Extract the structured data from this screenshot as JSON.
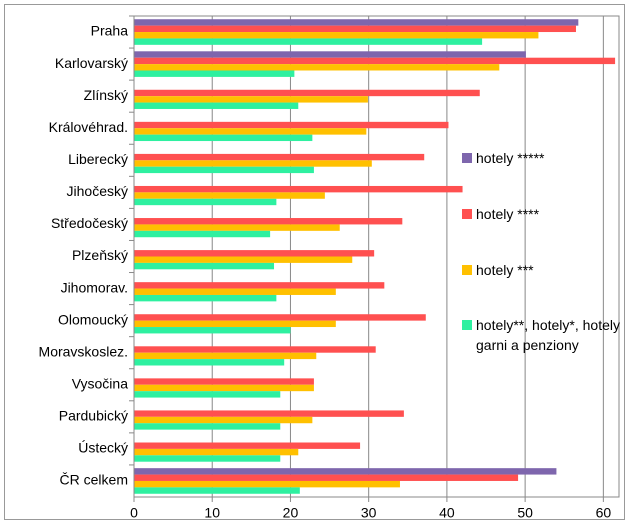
{
  "chart_data": {
    "type": "bar",
    "orientation": "horizontal",
    "categories": [
      "Praha",
      "Karlovarský",
      "Zlínský",
      "Královéhrad.",
      "Liberecký",
      "Jihočeský",
      "Středočeský",
      "Plzeňský",
      "Jihomorav.",
      "Olomoucký",
      "Moravskoslez.",
      "Vysočina",
      "Pardubický",
      "Ústecký",
      "ČR celkem"
    ],
    "series": [
      {
        "name": "hotely *****",
        "color": "#7e66ad",
        "values": [
          56.8,
          50.1,
          null,
          null,
          null,
          null,
          null,
          null,
          null,
          null,
          null,
          null,
          null,
          null,
          54
        ]
      },
      {
        "name": "hotely ****",
        "color": "#ff5050",
        "values": [
          56.5,
          61.5,
          44.2,
          40.2,
          37.1,
          42,
          34.3,
          30.7,
          32,
          37.3,
          30.9,
          23,
          34.5,
          28.9,
          49.1
        ]
      },
      {
        "name": "hotely ***",
        "color": "#ffc000",
        "values": [
          51.7,
          46.7,
          29.9,
          29.7,
          30.4,
          24.4,
          26.3,
          27.9,
          25.8,
          25.8,
          23.3,
          23,
          22.8,
          21,
          34
        ]
      },
      {
        "name": "hotely**, hotely*, hotely garni a penziony",
        "color": "#2ef0a0",
        "values": [
          44.5,
          20.5,
          21,
          22.8,
          23,
          18.2,
          17.4,
          17.9,
          18.2,
          20,
          19.2,
          18.7,
          18.7,
          18.7,
          21.2
        ]
      }
    ],
    "xlim": [
      0,
      62
    ],
    "xticks": [
      0,
      10,
      20,
      30,
      40,
      50,
      60
    ],
    "grid": true,
    "legend": "right"
  }
}
